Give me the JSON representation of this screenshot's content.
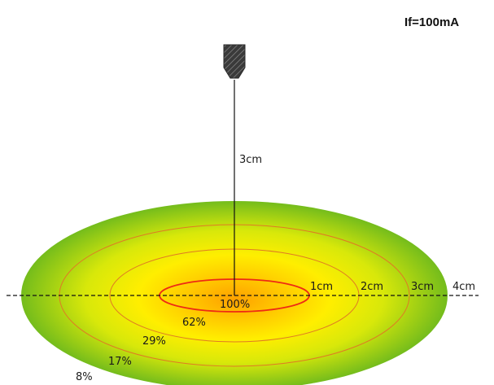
{
  "current_label": "If=100mA",
  "height_label": "3cm",
  "distance_labels": [
    "1cm",
    "2cm",
    "3cm",
    "4cm"
  ],
  "intensity_labels": [
    "100%",
    "62%",
    "29%",
    "17%",
    "8%"
  ],
  "colors": {
    "center": "#ffa000",
    "mid": "#ffe800",
    "edge": "#74bc1c",
    "ring": "#e07a24",
    "inner_ring": "#ee2a14",
    "sensor": "#3a3a3a"
  },
  "icons": {
    "sensor": "ir-led-emitter-icon"
  }
}
